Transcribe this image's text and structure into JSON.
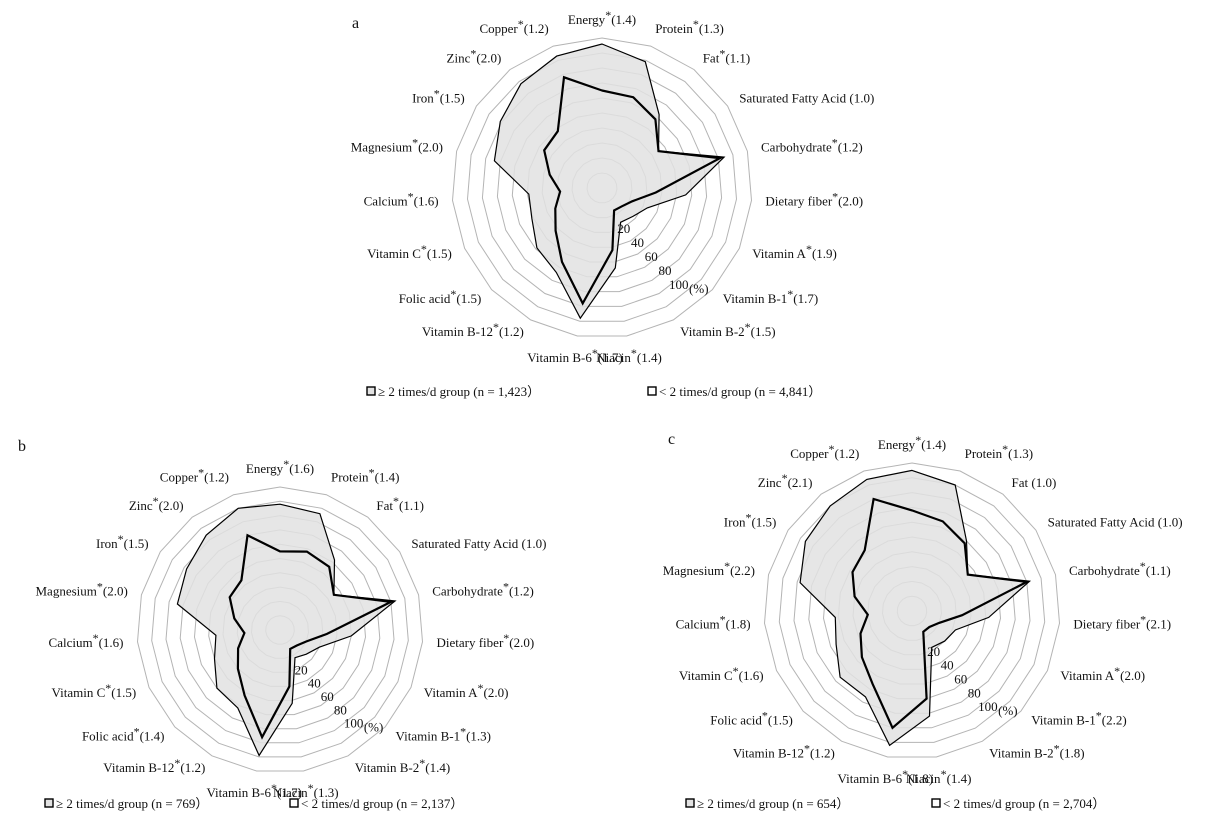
{
  "chart_data": [
    {
      "type": "radar",
      "panel": "a",
      "categories": [
        {
          "name": "Energy",
          "ratio": "(1.4)"
        },
        {
          "name": "Protein",
          "ratio": "(1.3)"
        },
        {
          "name": "Fat",
          "ratio": "(1.1)"
        },
        {
          "name": "Saturated Fatty Acid",
          "ratio": "(1.0)",
          "nostar": true
        },
        {
          "name": "Carbohydrate",
          "ratio": "(1.2)"
        },
        {
          "name": "Dietary fiber",
          "ratio": "(2.0)"
        },
        {
          "name": "Vitamin A",
          "ratio": "(1.9)"
        },
        {
          "name": "Vitamin B-1",
          "ratio": "(1.7)"
        },
        {
          "name": "Vitamin B-2",
          "ratio": "(1.5)"
        },
        {
          "name": "Niacin",
          "ratio": "(1.4)"
        },
        {
          "name": "Vitamin B-6",
          "ratio": "(1.7)"
        },
        {
          "name": "Vitamin B-12",
          "ratio": "(1.2)"
        },
        {
          "name": "Folic acid",
          "ratio": "(1.5)"
        },
        {
          "name": "Vitamin C",
          "ratio": "(1.5)"
        },
        {
          "name": "Calcium",
          "ratio": "(1.6)"
        },
        {
          "name": "Magnesium",
          "ratio": "(2.0)"
        },
        {
          "name": "Iron",
          "ratio": "(1.5)"
        },
        {
          "name": "Zinc",
          "ratio": "(2.0)"
        },
        {
          "name": "Copper",
          "ratio": "(1.2)"
        }
      ],
      "rticks": [
        "20",
        "40",
        "60",
        "80",
        "100"
      ],
      "runit": "(%)",
      "rlim": [
        0,
        100
      ],
      "series": [
        {
          "name": "≥ 2 times/d group (n = 1,423）",
          "values": [
            96,
            89,
            62,
            45,
            84,
            56,
            33,
            28,
            26,
            54,
            88,
            64,
            59,
            51,
            49,
            74,
            81,
            88,
            93
          ]
        },
        {
          "name": "< 2 times/d group (n = 4,841）",
          "values": [
            65,
            64,
            58,
            45,
            81,
            36,
            22,
            18,
            17,
            42,
            78,
            56,
            42,
            34,
            28,
            36,
            46,
            48,
            78
          ]
        }
      ]
    },
    {
      "type": "radar",
      "panel": "b",
      "categories": [
        {
          "name": "Energy",
          "ratio": "(1.6)"
        },
        {
          "name": "Protein",
          "ratio": "(1.4)"
        },
        {
          "name": "Fat",
          "ratio": "(1.1)"
        },
        {
          "name": "Saturated Fatty Acid",
          "ratio": "(1.0)",
          "nostar": true
        },
        {
          "name": "Carbohydrate",
          "ratio": "(1.2)"
        },
        {
          "name": "Dietary fiber",
          "ratio": "(2.0)"
        },
        {
          "name": "Vitamin A",
          "ratio": "(2.0)"
        },
        {
          "name": "Vitamin B-1",
          "ratio": "(1.3)"
        },
        {
          "name": "Vitamin B-2",
          "ratio": "(1.4)"
        },
        {
          "name": "Niacin",
          "ratio": "(1.3)"
        },
        {
          "name": "Vitamin B-6",
          "ratio": "(1.7)"
        },
        {
          "name": "Vitamin B-12",
          "ratio": "(1.2)"
        },
        {
          "name": "Folic acid",
          "ratio": "(1.4)"
        },
        {
          "name": "Vitamin C",
          "ratio": "(1.5)"
        },
        {
          "name": "Calcium",
          "ratio": "(1.6)"
        },
        {
          "name": "Magnesium",
          "ratio": "(2.0)"
        },
        {
          "name": "Iron",
          "ratio": "(1.5)"
        },
        {
          "name": "Zinc",
          "ratio": "(2.0)"
        },
        {
          "name": "Copper",
          "ratio": "(1.2)"
        }
      ],
      "rticks": [
        "20",
        "40",
        "60",
        "80",
        "100"
      ],
      "runit": "(%)",
      "rlim": [
        0,
        100
      ],
      "series": [
        {
          "name": "≥ 2 times/d group (n = 769）",
          "values": [
            88,
            86,
            62,
            45,
            83,
            50,
            30,
            25,
            22,
            52,
            89,
            62,
            60,
            50,
            45,
            74,
            78,
            84,
            90
          ]
        },
        {
          "name": "< 2 times/d group (n = 2,137）",
          "values": [
            55,
            58,
            56,
            45,
            80,
            33,
            20,
            16,
            15,
            40,
            76,
            52,
            40,
            32,
            25,
            33,
            42,
            44,
            70
          ]
        }
      ]
    },
    {
      "type": "radar",
      "panel": "c",
      "categories": [
        {
          "name": "Energy",
          "ratio": "(1.4)"
        },
        {
          "name": "Protein",
          "ratio": "(1.3)"
        },
        {
          "name": "Fat",
          "ratio": "(1.0)",
          "nostar": true
        },
        {
          "name": "Saturated Fatty Acid",
          "ratio": "(1.0)",
          "nostar": true
        },
        {
          "name": "Carbohydrate",
          "ratio": "(1.1)"
        },
        {
          "name": "Dietary fiber",
          "ratio": "(2.1)"
        },
        {
          "name": "Vitamin A",
          "ratio": "(2.0)"
        },
        {
          "name": "Vitamin B-1",
          "ratio": "(2.2)"
        },
        {
          "name": "Vitamin B-2",
          "ratio": "(1.8)"
        },
        {
          "name": "Niacin",
          "ratio": "(1.4)"
        },
        {
          "name": "Vitamin B-6",
          "ratio": "(1.8)"
        },
        {
          "name": "Vitamin B-12",
          "ratio": "(1.2)"
        },
        {
          "name": "Folic acid",
          "ratio": "(1.5)"
        },
        {
          "name": "Vitamin C",
          "ratio": "(1.6)"
        },
        {
          "name": "Calcium",
          "ratio": "(1.8)"
        },
        {
          "name": "Magnesium",
          "ratio": "(2.2)"
        },
        {
          "name": "Iron",
          "ratio": "(1.5)"
        },
        {
          "name": "Zinc",
          "ratio": "(2.1)"
        },
        {
          "name": "Copper",
          "ratio": "(1.2)"
        }
      ],
      "rticks": [
        "20",
        "40",
        "60",
        "80",
        "100"
      ],
      "runit": "(%)",
      "rlim": [
        0,
        100
      ],
      "series": [
        {
          "name": "≥ 2 times/d group (n = 654）",
          "values": [
            95,
            90,
            60,
            45,
            82,
            52,
            32,
            30,
            28,
            72,
            92,
            66,
            66,
            56,
            52,
            78,
            86,
            90,
            94
          ]
        },
        {
          "name": "< 2 times/d group (n = 2,704）",
          "values": [
            68,
            64,
            58,
            45,
            80,
            34,
            20,
            16,
            16,
            60,
            80,
            56,
            46,
            38,
            30,
            40,
            48,
            52,
            80
          ]
        }
      ]
    }
  ],
  "colors": {
    "grid": "#b4b4b4",
    "fill": "#e2e2e2",
    "line": "#000000"
  }
}
